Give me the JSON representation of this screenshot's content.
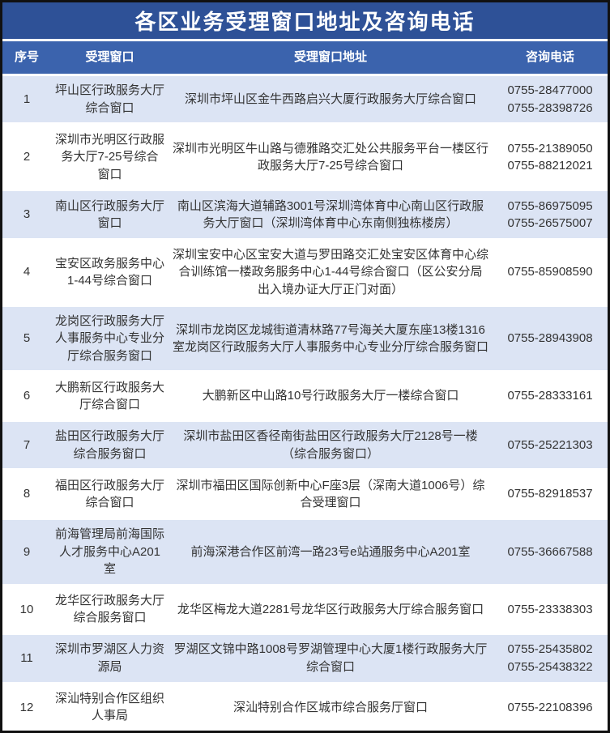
{
  "title": "各区业务受理窗口地址及咨询电话",
  "colors": {
    "title_bg": "#2e5197",
    "header_bg": "#3b63ad",
    "row_alt_bg": "#dce4f4",
    "border": "#111111",
    "text": "#333333",
    "header_text": "#ffffff"
  },
  "table": {
    "headers": [
      "序号",
      "受理窗口",
      "受理窗口地址",
      "咨询电话"
    ],
    "rows": [
      {
        "no": "1",
        "window": "坪山区行政服务大厅综合窗口",
        "address": "深圳市坪山区金牛西路启兴大厦行政服务大厅综合窗口",
        "phone": "0755-28477000\n0755-28398726"
      },
      {
        "no": "2",
        "window": "深圳市光明区行政服务大厅7-25号综合窗口",
        "address": "深圳市光明区牛山路与德雅路交汇处公共服务平台一楼区行政服务大厅7-25号综合窗口",
        "phone": "0755-21389050\n0755-88212021"
      },
      {
        "no": "3",
        "window": "南山区行政服务大厅窗口",
        "address": "南山区滨海大道辅路3001号深圳湾体育中心南山区行政服务大厅窗口（深圳湾体育中心东南侧独栋楼房）",
        "phone": "0755-86975095\n0755-26575007"
      },
      {
        "no": "4",
        "window": "宝安区政务服务中心1-44号综合窗口",
        "address": "深圳宝安中心区宝安大道与罗田路交汇处宝安区体育中心综合训练馆一楼政务服务中心1-44号综合窗口（区公安分局出入境办证大厅正门对面）",
        "phone": "0755-85908590"
      },
      {
        "no": "5",
        "window": "龙岗区行政服务大厅人事服务中心专业分厅综合服务窗口",
        "address": "深圳市龙岗区龙城街道清林路77号海关大厦东座13楼1316室龙岗区行政服务大厅人事服务中心专业分厅综合服务窗口",
        "phone": "0755-28943908"
      },
      {
        "no": "6",
        "window": "大鹏新区行政服务大厅综合窗口",
        "address": "大鹏新区中山路10号行政服务大厅一楼综合窗口",
        "phone": "0755-28333161"
      },
      {
        "no": "7",
        "window": "盐田区行政服务大厅综合服务窗口",
        "address": "深圳市盐田区香径南街盐田区行政服务大厅2128号一楼（综合服务窗口）",
        "phone": "0755-25221303"
      },
      {
        "no": "8",
        "window": "福田区行政服务大厅综合窗口",
        "address": "深圳市福田区国际创新中心F座3层（深南大道1006号）综合受理窗口",
        "phone": "0755-82918537"
      },
      {
        "no": "9",
        "window": "前海管理局前海国际人才服务中心A201室",
        "address": "前海深港合作区前湾一路23号e站通服务中心A201室",
        "phone": "0755-36667588"
      },
      {
        "no": "10",
        "window": "龙华区行政服务大厅综合服务窗口",
        "address": "龙华区梅龙大道2281号龙华区行政服务大厅综合服务窗口",
        "phone": "0755-23338303"
      },
      {
        "no": "11",
        "window": "深圳市罗湖区人力资源局",
        "address": "罗湖区文锦中路1008号罗湖管理中心大厦1楼行政服务大厅综合窗口",
        "phone": "0755-25435802\n0755-25438322"
      },
      {
        "no": "12",
        "window": "深汕特别合作区组织人事局",
        "address": "深汕特别合作区城市综合服务厅窗口",
        "phone": "0755-22108396"
      }
    ]
  }
}
